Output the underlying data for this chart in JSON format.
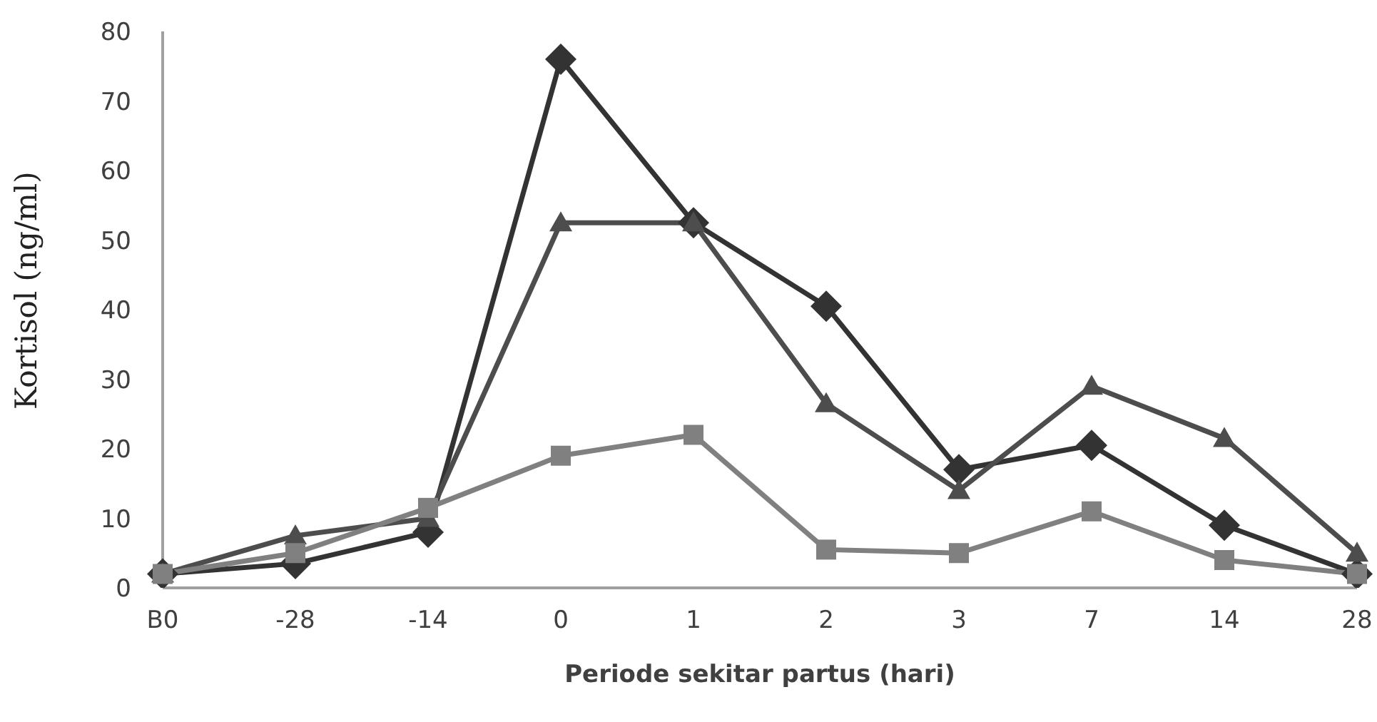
{
  "chart_data": {
    "type": "line",
    "xlabel": "Periode sekitar partus (hari)",
    "ylabel": "Kortisol (ng/ml)",
    "categories": [
      "B0",
      "-28",
      "-14",
      "0",
      "1",
      "2",
      "3",
      "7",
      "14",
      "28"
    ],
    "series": [
      {
        "color": "#333333",
        "marker": "diamond",
        "values": [
          2,
          3.5,
          8,
          76,
          52.5,
          40.5,
          17,
          20.5,
          9,
          2
        ]
      },
      {
        "color": "#4d4d4d",
        "marker": "triangle",
        "values": [
          2,
          7.5,
          10,
          52.5,
          52.5,
          26.5,
          14,
          29,
          21.5,
          5
        ]
      },
      {
        "color": "#808080",
        "marker": "square",
        "values": [
          2,
          5,
          11.5,
          19,
          22,
          5.5,
          5,
          11,
          4,
          2
        ]
      }
    ],
    "ylim": [
      0,
      80
    ],
    "yticks": [
      0,
      10,
      20,
      30,
      40,
      50,
      60,
      70,
      80
    ],
    "grid": false,
    "legend": false,
    "line_style": "solid"
  }
}
